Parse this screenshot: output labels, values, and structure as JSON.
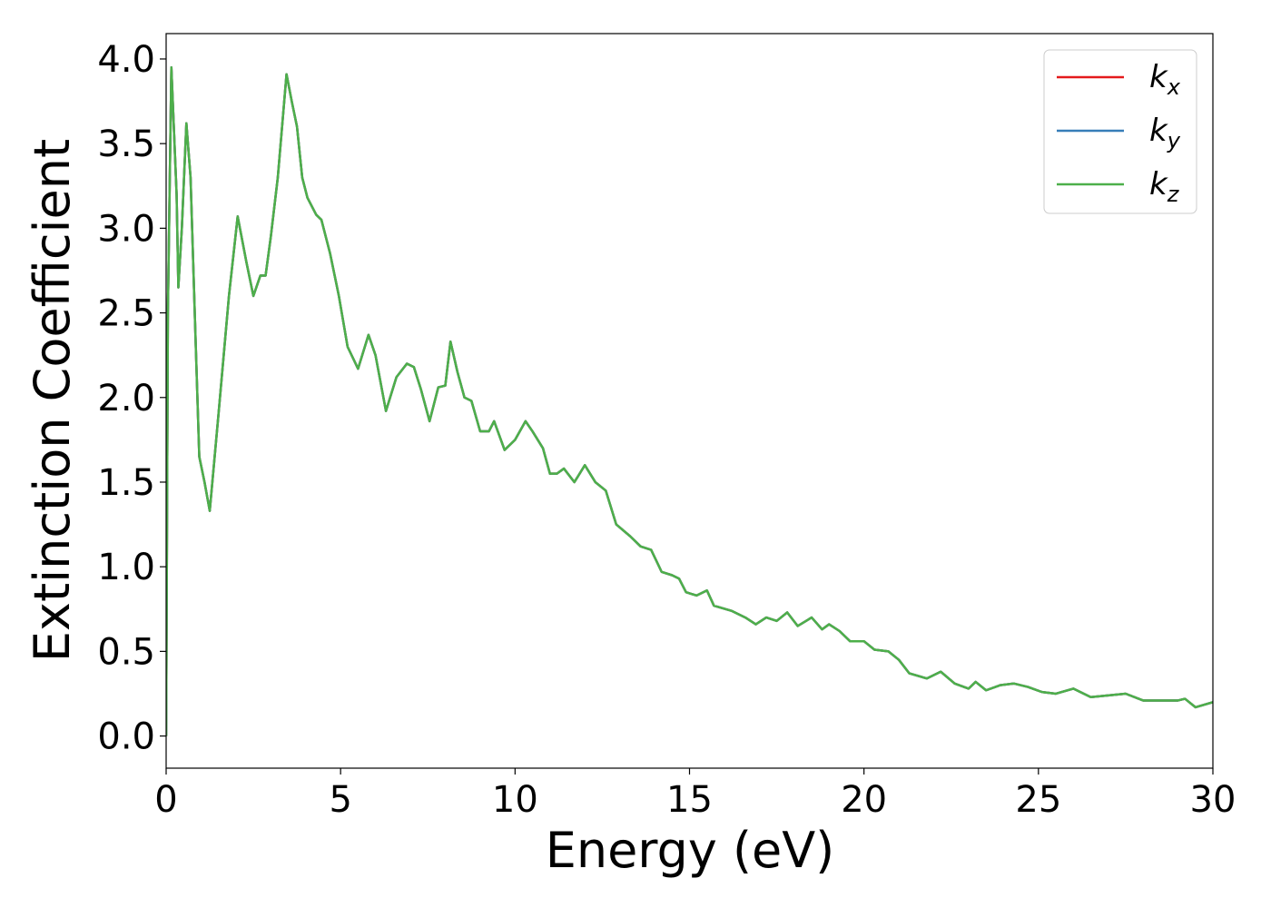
{
  "chart_data": {
    "type": "line",
    "xlabel": "Energy (eV)",
    "ylabel": "Extinction Coefficient",
    "x": [
      0,
      0.05,
      0.15,
      0.3,
      0.35,
      0.45,
      0.58,
      0.7,
      0.85,
      0.95,
      1.1,
      1.25,
      1.5,
      1.8,
      2.05,
      2.3,
      2.5,
      2.7,
      2.85,
      3.0,
      3.2,
      3.45,
      3.6,
      3.75,
      3.9,
      4.05,
      4.3,
      4.45,
      4.7,
      4.95,
      5.2,
      5.5,
      5.8,
      6.0,
      6.3,
      6.6,
      6.9,
      7.1,
      7.3,
      7.55,
      7.8,
      8.0,
      8.15,
      8.35,
      8.55,
      8.75,
      9.0,
      9.25,
      9.4,
      9.7,
      10.0,
      10.3,
      10.5,
      10.8,
      11.0,
      11.2,
      11.4,
      11.7,
      12.0,
      12.3,
      12.6,
      12.9,
      13.3,
      13.6,
      13.9,
      14.2,
      14.5,
      14.7,
      14.9,
      15.2,
      15.5,
      15.7,
      16.2,
      16.6,
      16.9,
      17.2,
      17.5,
      17.8,
      18.1,
      18.5,
      18.8,
      19.0,
      19.3,
      19.6,
      20.0,
      20.3,
      20.7,
      21.0,
      21.3,
      21.8,
      22.2,
      22.6,
      23.0,
      23.2,
      23.5,
      23.9,
      24.3,
      24.7,
      25.1,
      25.5,
      26.0,
      26.5,
      27.0,
      27.5,
      28.0,
      28.5,
      29.0,
      29.2,
      29.5,
      30.0
    ],
    "series": [
      {
        "name": "kx",
        "color": "#e41a1c",
        "values": [
          0.0,
          2.5,
          3.95,
          3.2,
          2.65,
          3.0,
          3.62,
          3.3,
          2.3,
          1.65,
          1.5,
          1.33,
          1.9,
          2.6,
          3.07,
          2.8,
          2.6,
          2.72,
          2.72,
          2.95,
          3.3,
          3.91,
          3.75,
          3.6,
          3.3,
          3.18,
          3.08,
          3.05,
          2.85,
          2.6,
          2.3,
          2.17,
          2.37,
          2.25,
          1.92,
          2.12,
          2.2,
          2.18,
          2.05,
          1.86,
          2.06,
          2.07,
          2.33,
          2.15,
          2.0,
          1.98,
          1.8,
          1.8,
          1.86,
          1.69,
          1.75,
          1.86,
          1.8,
          1.7,
          1.55,
          1.55,
          1.58,
          1.5,
          1.6,
          1.5,
          1.45,
          1.25,
          1.18,
          1.12,
          1.1,
          0.97,
          0.95,
          0.93,
          0.85,
          0.83,
          0.86,
          0.77,
          0.74,
          0.7,
          0.66,
          0.7,
          0.68,
          0.73,
          0.65,
          0.7,
          0.63,
          0.66,
          0.62,
          0.56,
          0.56,
          0.51,
          0.5,
          0.45,
          0.37,
          0.34,
          0.38,
          0.31,
          0.28,
          0.32,
          0.27,
          0.3,
          0.31,
          0.29,
          0.26,
          0.25,
          0.28,
          0.23,
          0.24,
          0.25,
          0.21,
          0.21,
          0.21,
          0.22,
          0.17,
          0.2
        ]
      },
      {
        "name": "ky",
        "color": "#377eb8",
        "values": [
          0.0,
          2.5,
          3.95,
          3.2,
          2.65,
          3.0,
          3.62,
          3.3,
          2.3,
          1.65,
          1.5,
          1.33,
          1.9,
          2.6,
          3.07,
          2.8,
          2.6,
          2.72,
          2.72,
          2.95,
          3.3,
          3.91,
          3.75,
          3.6,
          3.3,
          3.18,
          3.08,
          3.05,
          2.85,
          2.6,
          2.3,
          2.17,
          2.37,
          2.25,
          1.92,
          2.12,
          2.2,
          2.18,
          2.05,
          1.86,
          2.06,
          2.07,
          2.33,
          2.15,
          2.0,
          1.98,
          1.8,
          1.8,
          1.86,
          1.69,
          1.75,
          1.86,
          1.8,
          1.7,
          1.55,
          1.55,
          1.58,
          1.5,
          1.6,
          1.5,
          1.45,
          1.25,
          1.18,
          1.12,
          1.1,
          0.97,
          0.95,
          0.93,
          0.85,
          0.83,
          0.86,
          0.77,
          0.74,
          0.7,
          0.66,
          0.7,
          0.68,
          0.73,
          0.65,
          0.7,
          0.63,
          0.66,
          0.62,
          0.56,
          0.56,
          0.51,
          0.5,
          0.45,
          0.37,
          0.34,
          0.38,
          0.31,
          0.28,
          0.32,
          0.27,
          0.3,
          0.31,
          0.29,
          0.26,
          0.25,
          0.28,
          0.23,
          0.24,
          0.25,
          0.21,
          0.21,
          0.21,
          0.22,
          0.17,
          0.2
        ]
      },
      {
        "name": "kz",
        "color": "#4daf4a",
        "values": [
          0.0,
          2.5,
          3.95,
          3.2,
          2.65,
          3.0,
          3.62,
          3.3,
          2.3,
          1.65,
          1.5,
          1.33,
          1.9,
          2.6,
          3.07,
          2.8,
          2.6,
          2.72,
          2.72,
          2.95,
          3.3,
          3.91,
          3.75,
          3.6,
          3.3,
          3.18,
          3.08,
          3.05,
          2.85,
          2.6,
          2.3,
          2.17,
          2.37,
          2.25,
          1.92,
          2.12,
          2.2,
          2.18,
          2.05,
          1.86,
          2.06,
          2.07,
          2.33,
          2.15,
          2.0,
          1.98,
          1.8,
          1.8,
          1.86,
          1.69,
          1.75,
          1.86,
          1.8,
          1.7,
          1.55,
          1.55,
          1.58,
          1.5,
          1.6,
          1.5,
          1.45,
          1.25,
          1.18,
          1.12,
          1.1,
          0.97,
          0.95,
          0.93,
          0.85,
          0.83,
          0.86,
          0.77,
          0.74,
          0.7,
          0.66,
          0.7,
          0.68,
          0.73,
          0.65,
          0.7,
          0.63,
          0.66,
          0.62,
          0.56,
          0.56,
          0.51,
          0.5,
          0.45,
          0.37,
          0.34,
          0.38,
          0.31,
          0.28,
          0.32,
          0.27,
          0.3,
          0.31,
          0.29,
          0.26,
          0.25,
          0.28,
          0.23,
          0.24,
          0.25,
          0.21,
          0.21,
          0.21,
          0.22,
          0.17,
          0.2
        ]
      }
    ],
    "xlim": [
      0,
      30
    ],
    "xticks": [
      0,
      5,
      10,
      15,
      20,
      25,
      30
    ],
    "ylim": [
      -0.19,
      4.15
    ],
    "yticks": [
      {
        "value": 0,
        "label": "0.0"
      },
      {
        "value": 0.5,
        "label": "0.5"
      },
      {
        "value": 1,
        "label": "1.0"
      },
      {
        "value": 1.5,
        "label": "1.5"
      },
      {
        "value": 2,
        "label": "2.0"
      },
      {
        "value": 2.5,
        "label": "2.5"
      },
      {
        "value": 3,
        "label": "3.0"
      },
      {
        "value": 3.5,
        "label": "3.5"
      },
      {
        "value": 4,
        "label": "4.0"
      }
    ],
    "grid": false,
    "legend": "upper right"
  }
}
